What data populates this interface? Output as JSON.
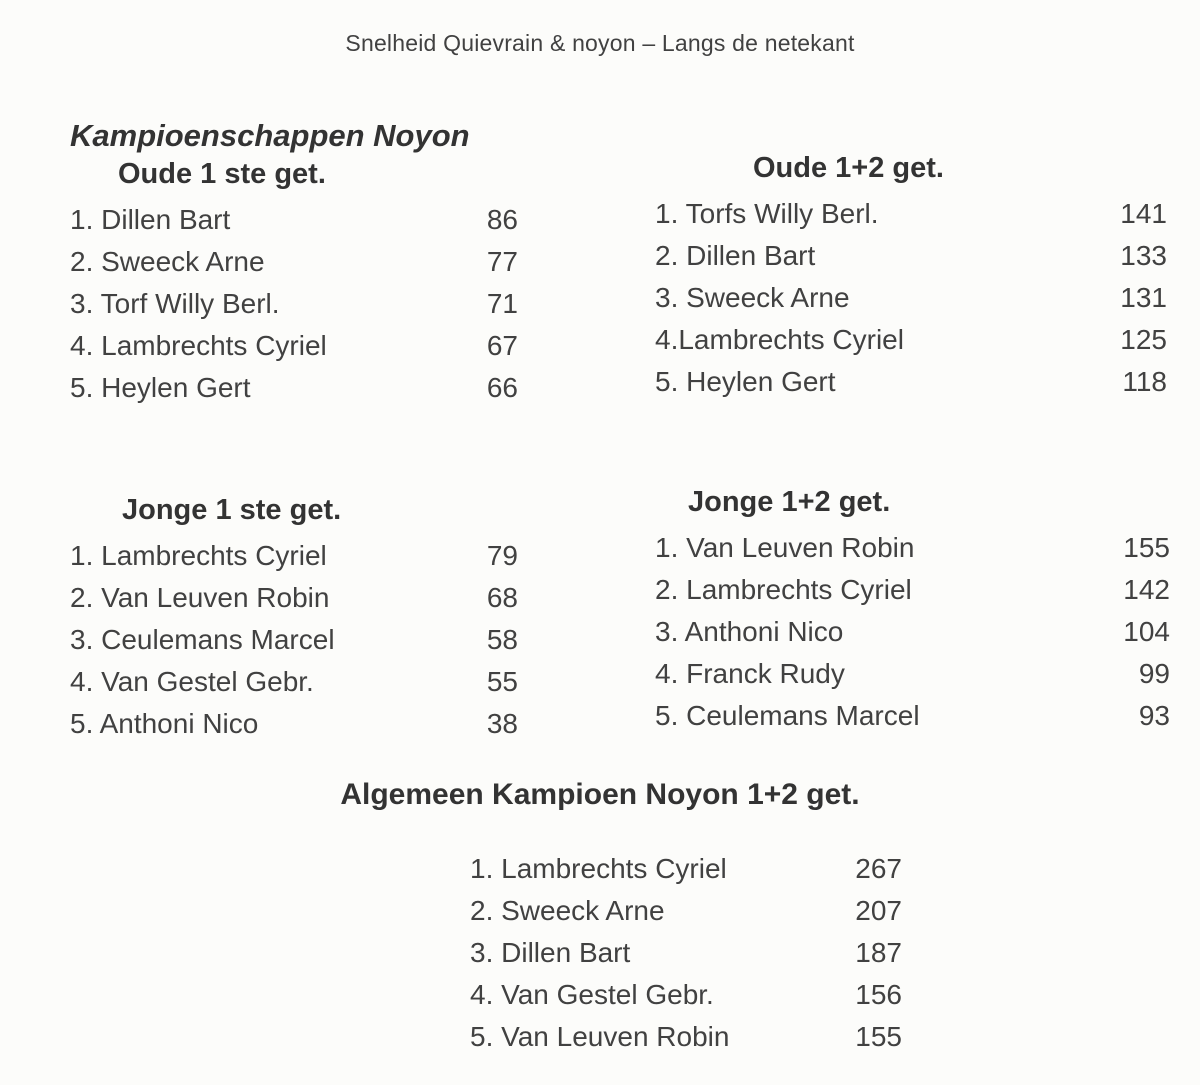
{
  "document": {
    "header_title": "Snelheid Quievrain & noyon – Langs de netekant",
    "main_heading": "Kampioenschappen Noyon"
  },
  "sections": {
    "oude_1ste": {
      "title": "Oude 1 ste get.",
      "entries": [
        {
          "label": "1. Dillen Bart",
          "score": "86"
        },
        {
          "label": "2. Sweeck Arne",
          "score": "77"
        },
        {
          "label": "3. Torf Willy Berl.",
          "score": "71"
        },
        {
          "label": "4. Lambrechts Cyriel",
          "score": "67"
        },
        {
          "label": "5. Heylen Gert",
          "score": "66"
        }
      ]
    },
    "oude_1_2": {
      "title": "Oude 1+2 get.",
      "entries": [
        {
          "label": "1. Torfs Willy Berl.",
          "score": "141"
        },
        {
          "label": "2. Dillen Bart",
          "score": "133"
        },
        {
          "label": "3. Sweeck Arne",
          "score": "131"
        },
        {
          "label": "4.Lambrechts Cyriel",
          "score": "125"
        },
        {
          "label": "5. Heylen Gert",
          "score": "118"
        }
      ]
    },
    "jonge_1ste": {
      "title": "Jonge 1 ste get.",
      "entries": [
        {
          "label": "1. Lambrechts Cyriel",
          "score": "79"
        },
        {
          "label": "2. Van Leuven Robin",
          "score": "68"
        },
        {
          "label": "3. Ceulemans Marcel",
          "score": "58"
        },
        {
          "label": "4. Van Gestel Gebr.",
          "score": "55"
        },
        {
          "label": "5. Anthoni Nico",
          "score": "38"
        }
      ]
    },
    "jonge_1_2": {
      "title": "Jonge 1+2 get.",
      "entries": [
        {
          "label": "1. Van Leuven Robin",
          "score": "155"
        },
        {
          "label": "2. Lambrechts Cyriel",
          "score": "142"
        },
        {
          "label": "3. Anthoni Nico",
          "score": "104"
        },
        {
          "label": "4. Franck Rudy",
          "score": "99"
        },
        {
          "label": "5. Ceulemans Marcel",
          "score": "93"
        }
      ]
    },
    "algemeen": {
      "title": "Algemeen Kampioen Noyon 1+2 get.",
      "entries": [
        {
          "label": "1. Lambrechts Cyriel",
          "score": "267"
        },
        {
          "label": "2. Sweeck Arne",
          "score": "207"
        },
        {
          "label": "3. Dillen Bart",
          "score": "187"
        },
        {
          "label": "4. Van Gestel Gebr.",
          "score": "156"
        },
        {
          "label": "5. Van Leuven Robin",
          "score": "155"
        }
      ]
    }
  },
  "colors": {
    "background": "#fcfcfa",
    "text": "#414141",
    "heading": "#333333"
  }
}
